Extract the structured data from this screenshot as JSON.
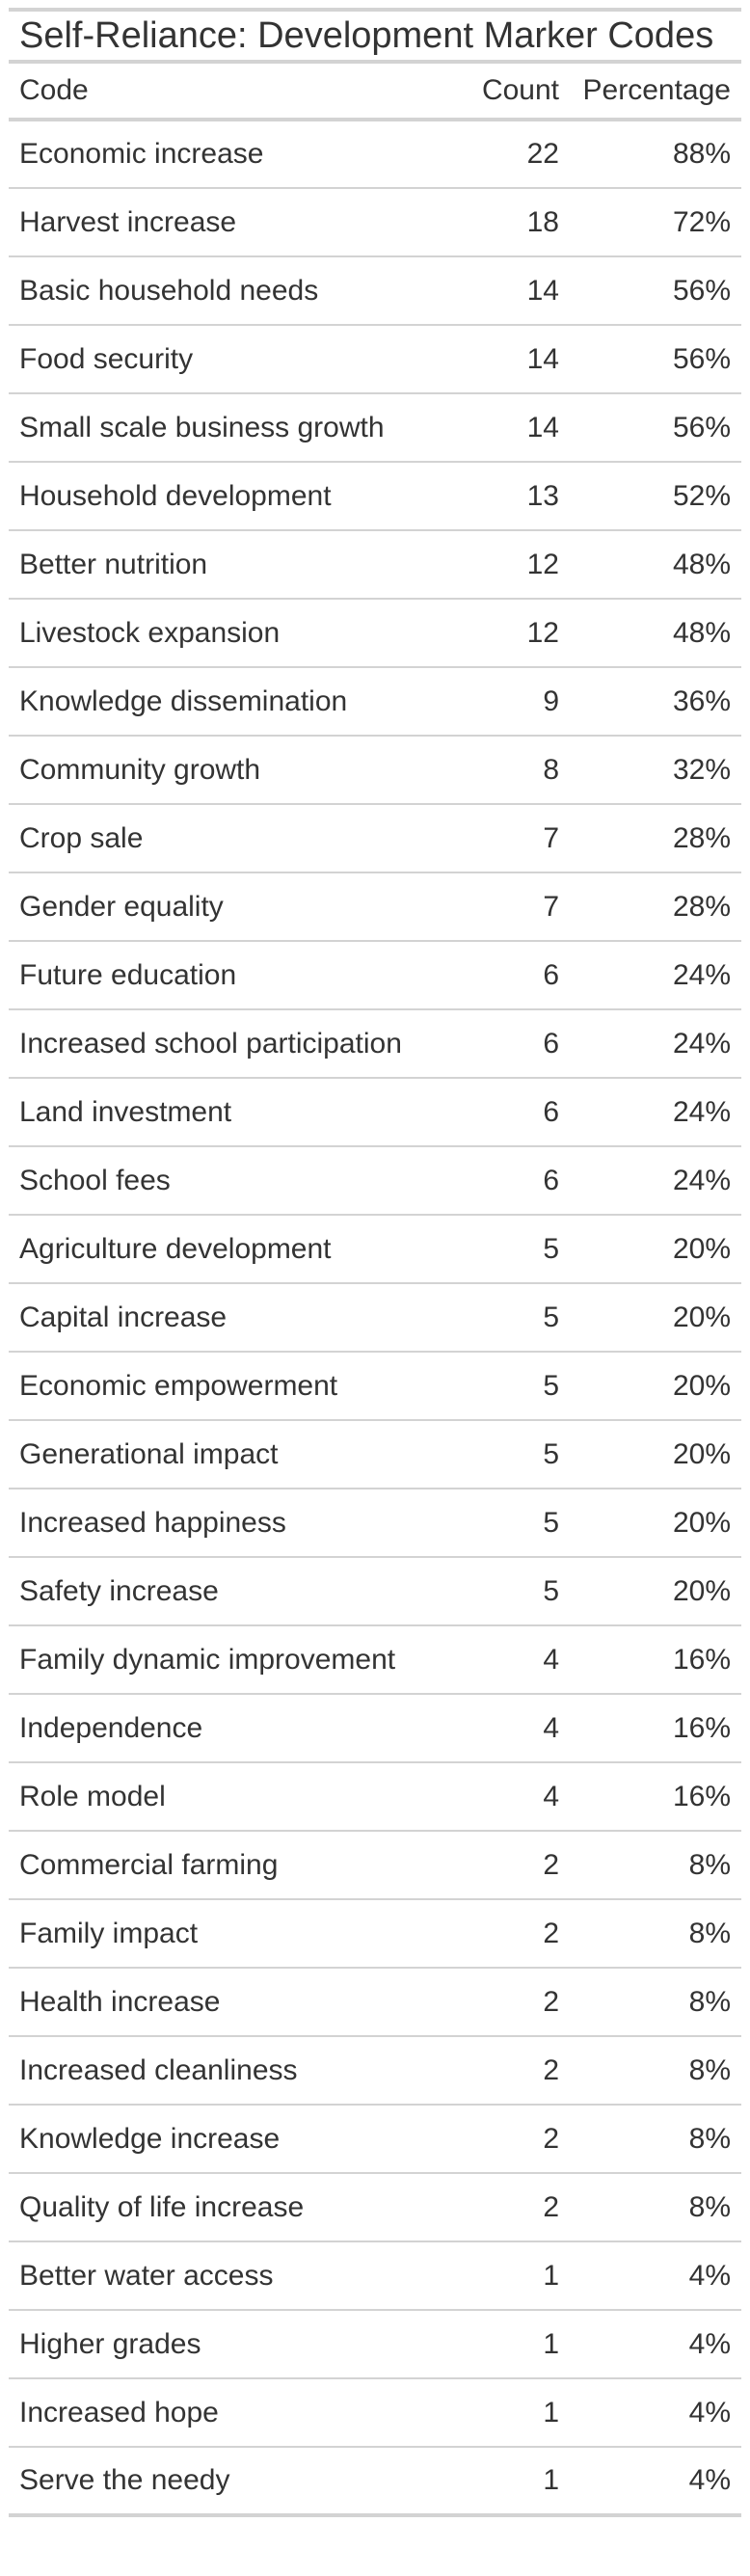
{
  "table": {
    "title": "Self-Reliance: Development Marker Codes",
    "columns": [
      "Code",
      "Count",
      "Percentage"
    ],
    "rows": [
      [
        "Economic increase",
        "22",
        "88%"
      ],
      [
        "Harvest increase",
        "18",
        "72%"
      ],
      [
        "Basic household needs",
        "14",
        "56%"
      ],
      [
        "Food security",
        "14",
        "56%"
      ],
      [
        "Small scale business growth",
        "14",
        "56%"
      ],
      [
        "Household development",
        "13",
        "52%"
      ],
      [
        "Better nutrition",
        "12",
        "48%"
      ],
      [
        "Livestock expansion",
        "12",
        "48%"
      ],
      [
        "Knowledge dissemination",
        "9",
        "36%"
      ],
      [
        "Community growth",
        "8",
        "32%"
      ],
      [
        "Crop sale",
        "7",
        "28%"
      ],
      [
        "Gender equality",
        "7",
        "28%"
      ],
      [
        "Future education",
        "6",
        "24%"
      ],
      [
        "Increased school participation",
        "6",
        "24%"
      ],
      [
        "Land investment",
        "6",
        "24%"
      ],
      [
        "School fees",
        "6",
        "24%"
      ],
      [
        "Agriculture development",
        "5",
        "20%"
      ],
      [
        "Capital increase",
        "5",
        "20%"
      ],
      [
        "Economic empowerment",
        "5",
        "20%"
      ],
      [
        "Generational impact",
        "5",
        "20%"
      ],
      [
        "Increased happiness",
        "5",
        "20%"
      ],
      [
        "Safety increase",
        "5",
        "20%"
      ],
      [
        "Family dynamic improvement",
        "4",
        "16%"
      ],
      [
        "Independence",
        "4",
        "16%"
      ],
      [
        "Role model",
        "4",
        "16%"
      ],
      [
        "Commercial farming",
        "2",
        "8%"
      ],
      [
        "Family impact",
        "2",
        "8%"
      ],
      [
        "Health increase",
        "2",
        "8%"
      ],
      [
        "Increased cleanliness",
        "2",
        "8%"
      ],
      [
        "Knowledge increase",
        "2",
        "8%"
      ],
      [
        "Quality of life increase",
        "2",
        "8%"
      ],
      [
        "Better water access",
        "1",
        "4%"
      ],
      [
        "Higher grades",
        "1",
        "4%"
      ],
      [
        "Increased hope",
        "1",
        "4%"
      ],
      [
        "Serve the needy",
        "1",
        "4%"
      ]
    ]
  }
}
